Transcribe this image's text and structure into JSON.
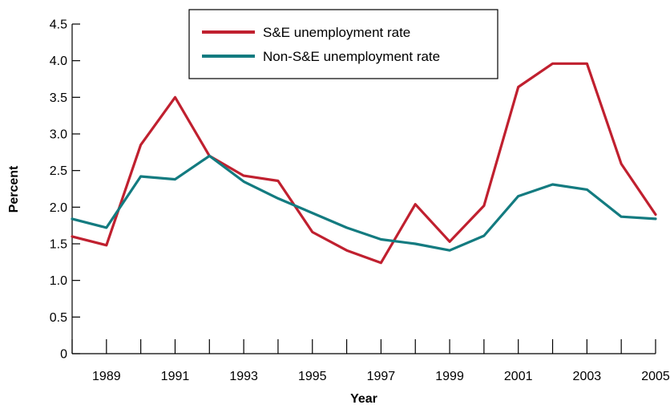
{
  "chart_data": {
    "type": "line",
    "xlabel": "Year",
    "ylabel": "Percent",
    "xlim": [
      1988,
      2005
    ],
    "ylim": [
      0,
      4.5
    ],
    "x_ticks": [
      1989,
      1991,
      1993,
      1995,
      1997,
      1999,
      2001,
      2003,
      2005
    ],
    "x_minor_ticks": [
      1988,
      1989,
      1990,
      1991,
      1992,
      1993,
      1994,
      1995,
      1996,
      1997,
      1998,
      1999,
      2000,
      2001,
      2002,
      2003,
      2004,
      2005
    ],
    "y_ticks": [
      "0",
      "0.5",
      "1.0",
      "1.5",
      "2.0",
      "2.5",
      "3.0",
      "3.5",
      "4.0",
      "4.5"
    ],
    "grid": false,
    "legend_position": "top-center",
    "x": [
      1988,
      1989,
      1990,
      1991,
      1992,
      1993,
      1994,
      1995,
      1996,
      1997,
      1998,
      1999,
      2000,
      2001,
      2002,
      2003,
      2004,
      2005
    ],
    "series": [
      {
        "name": "S&E unemployment rate",
        "color": "#c0202f",
        "values": [
          1.6,
          1.48,
          2.85,
          3.5,
          2.7,
          2.43,
          2.36,
          1.66,
          1.41,
          1.24,
          2.04,
          1.53,
          2.02,
          3.64,
          3.96,
          3.96,
          2.59,
          1.9
        ]
      },
      {
        "name": "Non-S&E unemployment rate",
        "color": "#137b80",
        "values": [
          1.84,
          1.72,
          2.42,
          2.38,
          2.7,
          2.35,
          2.12,
          1.92,
          1.72,
          1.56,
          1.5,
          1.41,
          1.61,
          2.15,
          2.31,
          2.24,
          1.87,
          1.84
        ]
      }
    ]
  }
}
